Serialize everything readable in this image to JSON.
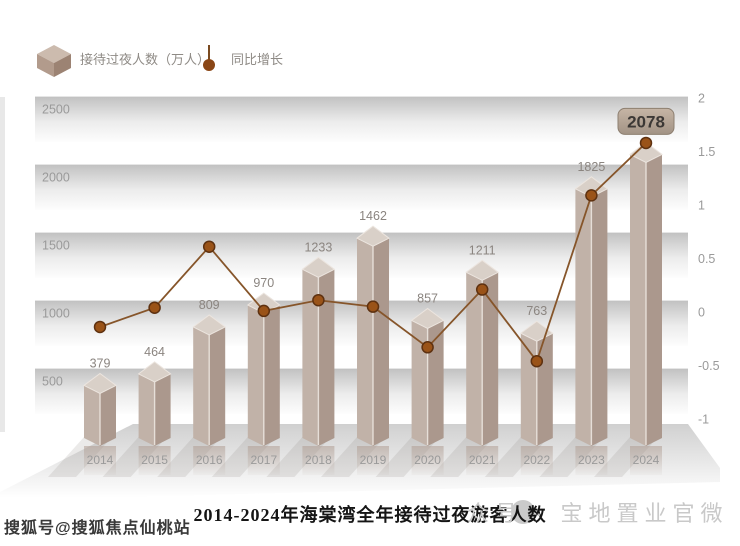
{
  "legend": {
    "bar": {
      "label": "接待过夜人数（万人）",
      "icon": "cube-icon"
    },
    "line": {
      "label": "同比增长",
      "icon": "lollipop-icon"
    }
  },
  "chart_data": {
    "type": "bar+line",
    "title": "2014-2024年海棠湾全年接待过夜游客人数",
    "categories": [
      "2014",
      "2015",
      "2016",
      "2017",
      "2018",
      "2019",
      "2020",
      "2021",
      "2022",
      "2023",
      "2024"
    ],
    "series": [
      {
        "name": "接待过夜人数（万人）",
        "type": "bar",
        "axis": "left",
        "values": [
          379,
          464,
          809,
          970,
          1233,
          1462,
          857,
          1211,
          763,
          1825,
          2078
        ]
      },
      {
        "name": "同比增长",
        "type": "line",
        "axis": "right",
        "values": [
          -0.14,
          0.04,
          0.61,
          0.01,
          0.11,
          0.05,
          -0.33,
          0.21,
          -0.46,
          1.09,
          1.58
        ]
      }
    ],
    "left_axis": {
      "ticks": [
        2500,
        2000,
        1500,
        1000,
        500
      ],
      "range": [
        0,
        2500
      ]
    },
    "right_axis": {
      "ticks": [
        2,
        1.5,
        1,
        0.5,
        0,
        -0.5,
        -1
      ],
      "range": [
        -1,
        2
      ]
    },
    "highlight": {
      "index": 10,
      "value": 2078
    },
    "grid": "horizontal-bands",
    "legend_position": "top-left"
  },
  "watermarks": {
    "bottom_left": "搜狐号@搜狐焦点仙桃站",
    "right": "众号 · 宝地置业官微"
  },
  "colors": {
    "bar_left": "#c1b2a8",
    "bar_right": "#ab988d",
    "bar_top": "#d9d0c8",
    "bar_edge": "#ece5df",
    "line": "#86552a",
    "dot_fill": "#9a5318",
    "dot_stroke": "#5e3110",
    "value_label": "#8b8580",
    "axis_label": "#9a9a9a",
    "band_top": "#c2c2c2",
    "badge_text": "#3c3835",
    "badge_border": "#8d7f70",
    "title_color": "#151515",
    "watermark_left_color": "#383838",
    "watermark_right_color": "#c9c9c9",
    "legend_text": "#8f8b86"
  }
}
